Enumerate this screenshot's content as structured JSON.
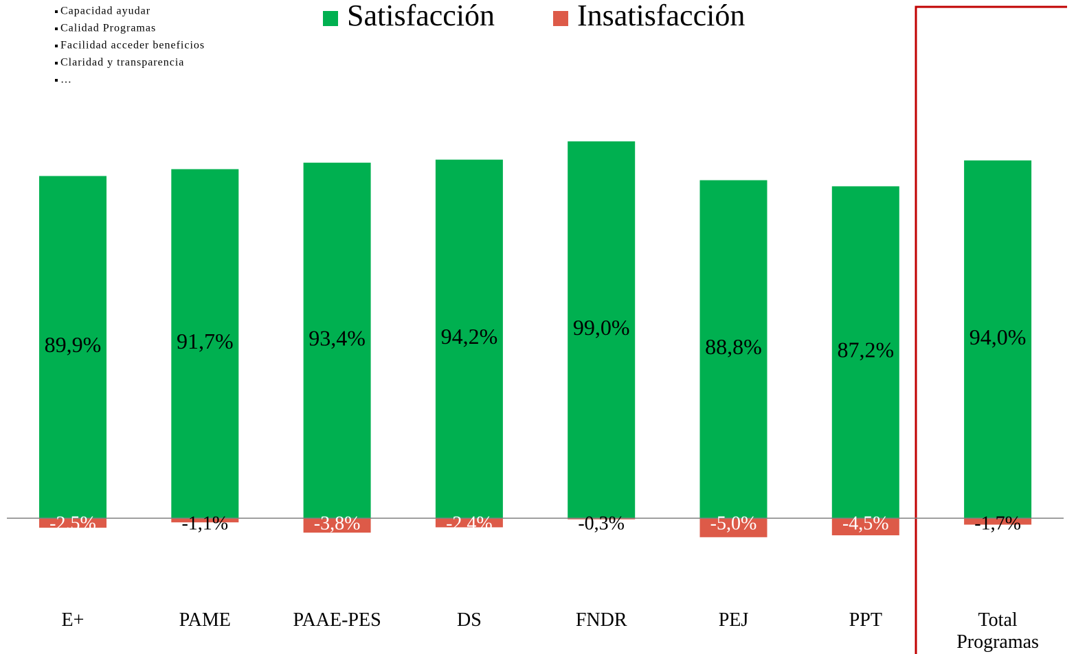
{
  "chart_data": {
    "type": "bar",
    "annotations": [
      "Capacidad ayudar",
      "Calidad Programas",
      "Facilidad acceder beneficios",
      "Claridad y transparencia",
      "…"
    ],
    "categories": [
      "E+",
      "PAME",
      "PAAE-PES",
      "DS",
      "FNDR",
      "PEJ",
      "PPT",
      "Total Programas"
    ],
    "series": [
      {
        "name": "Satisfacción",
        "color": "#00b050",
        "values": [
          89.9,
          91.7,
          93.4,
          94.2,
          99.0,
          88.8,
          87.2,
          94.0
        ],
        "value_labels": [
          "89,9%",
          "91,7%",
          "93,4%",
          "94,2%",
          "99,0%",
          "88,8%",
          "87,2%",
          "94,0%"
        ]
      },
      {
        "name": "Insatisfacción",
        "color": "#dd5a48",
        "values": [
          -2.5,
          -1.1,
          -3.8,
          -2.4,
          -0.3,
          -5.0,
          -4.5,
          -1.7
        ],
        "value_labels": [
          "-2,5%",
          "-1,1%",
          "-3,8%",
          "-2,4%",
          "-0,3%",
          "-5,0%",
          "-4,5%",
          "-1,7%"
        ]
      }
    ],
    "ylim": [
      -20,
      110
    ],
    "legend": "top"
  }
}
